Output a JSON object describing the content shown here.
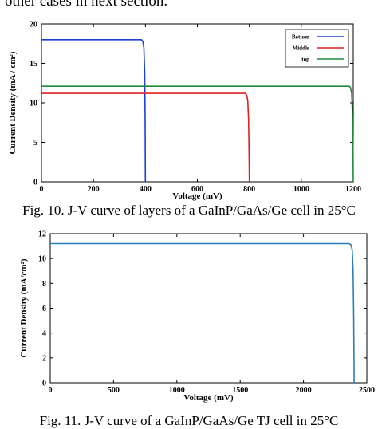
{
  "prose_fragment": "other cases in next section.",
  "chart_data": [
    {
      "type": "line",
      "title": "",
      "xlabel": "Voltage (mV)",
      "ylabel": "Current Density (mA / cm²)",
      "xlim": [
        0,
        1200
      ],
      "ylim": [
        0,
        20
      ],
      "xticks": [
        0,
        200,
        400,
        600,
        800,
        1000,
        1200
      ],
      "yticks": [
        0,
        5,
        10,
        15,
        20
      ],
      "grid": false,
      "legend_position": "top-right",
      "series": [
        {
          "name": "Bottom",
          "color": "#1f3fd6",
          "x": [
            0,
            385,
            390,
            394,
            397,
            399,
            400
          ],
          "y": [
            18.0,
            18.0,
            17.8,
            17.0,
            14.0,
            8.0,
            0
          ]
        },
        {
          "name": "Middle",
          "color": "#e02020",
          "x": [
            0,
            785,
            790,
            794,
            797,
            799,
            800
          ],
          "y": [
            11.2,
            11.2,
            11.0,
            10.3,
            8.0,
            4.0,
            0
          ]
        },
        {
          "name": "top",
          "color": "#1f8a3a",
          "x": [
            0,
            1185,
            1190,
            1194,
            1197,
            1199,
            1200
          ],
          "y": [
            12.1,
            12.1,
            11.9,
            11.2,
            8.5,
            4.0,
            0
          ]
        }
      ]
    },
    {
      "type": "line",
      "title": "",
      "xlabel": "Voltage (mV)",
      "ylabel": "Current Density (mA/cm²)",
      "xlim": [
        0,
        2500
      ],
      "ylim": [
        0,
        12
      ],
      "xticks": [
        0,
        500,
        1000,
        1500,
        2000,
        2500
      ],
      "yticks": [
        0,
        2,
        4,
        6,
        8,
        10,
        12
      ],
      "grid": false,
      "series": [
        {
          "color": "#2a7fb8",
          "x": [
            0,
            2360,
            2375,
            2385,
            2392,
            2397,
            2400
          ],
          "y": [
            11.2,
            11.2,
            11.1,
            10.7,
            9.0,
            5.0,
            0
          ]
        }
      ]
    }
  ],
  "captions": {
    "fig10": "Fig. 10. J-V curve of layers of a GaInP/GaAs/Ge cell in 25°C",
    "fig11": "Fig. 11. J-V curve of a GaInP/GaAs/Ge TJ cell in 25°C"
  }
}
